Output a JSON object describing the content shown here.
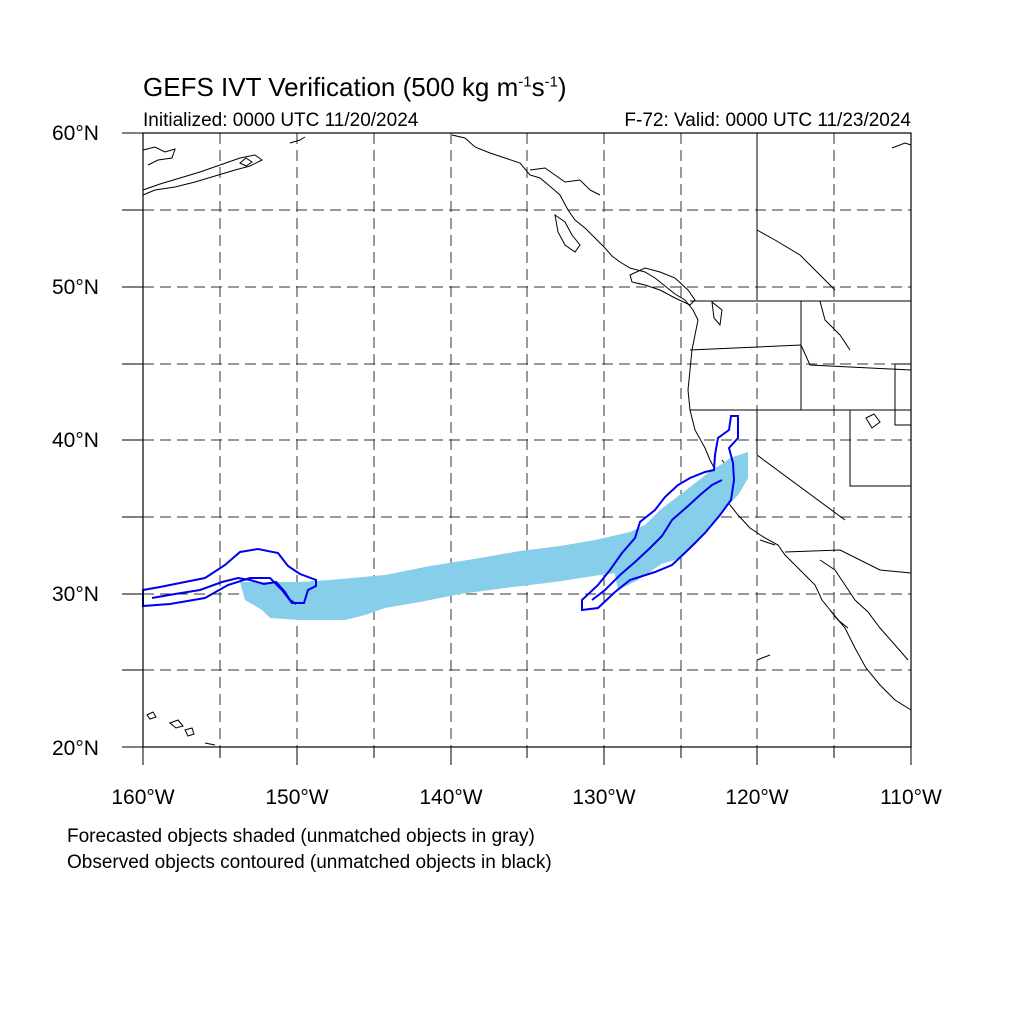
{
  "title": {
    "prefix": "GEFS IVT Verification (500 kg m",
    "exp1": "-1",
    "mid": "s",
    "exp2": "-1",
    "suffix": ")"
  },
  "initialized": "Initialized: 0000 UTC 11/20/2024",
  "valid": "F-72: Valid: 0000 UTC 11/23/2024",
  "map": {
    "lon_range": [
      -160,
      -110
    ],
    "lat_range": [
      20,
      60
    ],
    "grid_lines": "dashed",
    "lat_labels": [
      "60°N",
      "50°N",
      "40°N",
      "30°N",
      "20°N"
    ],
    "lon_labels": [
      "160°W",
      "150°W",
      "140°W",
      "130°W",
      "120°W",
      "110°W"
    ],
    "forecast_color": "#87ceeb",
    "observed_color": "#0000ee"
  },
  "notes": {
    "line1": "Forecasted objects shaded (unmatched objects in gray)",
    "line2": "Observed objects contoured (unmatched objects in black)"
  }
}
